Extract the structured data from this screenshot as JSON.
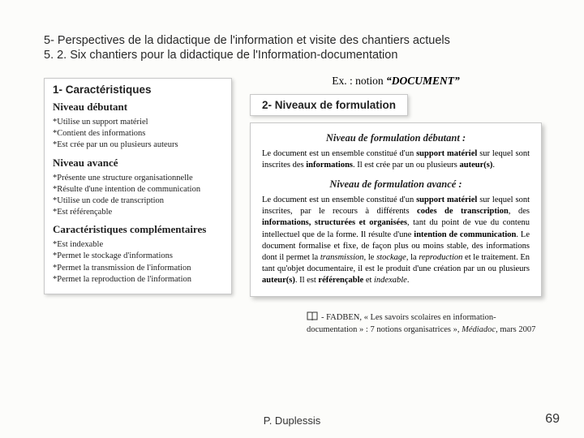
{
  "heading": {
    "line1": "5- Perspectives de la didactique de l'information et visite des chantiers actuels",
    "line2": "5. 2. Six chantiers pour la didactique de l'Information-documentation"
  },
  "example": {
    "prefix": "Ex. : notion ",
    "term": "“DOCUMENT”"
  },
  "left": {
    "section_label": "1- Caractéristiques",
    "debutant_label": "Niveau débutant",
    "debutant_items": [
      "Utilise un support matériel",
      "Contient des informations",
      "Est crée par un ou plusieurs auteurs"
    ],
    "avance_label": "Niveau avancé",
    "avance_items": [
      "Présente une structure organisationnelle",
      "Résulte d'une intention de communication",
      "Utilise un code de transcription",
      "Est référençable"
    ],
    "comp_label": "Caractéristiques complémentaires",
    "comp_items": [
      "Est indexable",
      "Permet le stockage d'informations",
      "Permet la transmission de l'information",
      "Permet la reproduction de l'information"
    ]
  },
  "right": {
    "section_label": "2- Niveaux de formulation",
    "deb_title": "Niveau de formulation débutant :",
    "deb_html": "Le document est un ensemble constitué d'un <strong>support matériel</strong> sur lequel sont inscrites des <strong>informations</strong>. Il est crée par un ou plusieurs <strong>auteur(s)</strong>.",
    "adv_title": "Niveau de formulation avancé :",
    "adv_html": "Le document est un ensemble constitué d'un <strong>support matériel</strong> sur lequel sont inscrites, par le recours à différents <strong>codes de transcription</strong>, des <strong>informations, structurées et organisées</strong>, tant du point de vue du contenu intellectuel que de la forme. Il résulte d'une <strong>intention de communication</strong>. Le document formalise et fixe, de façon plus ou moins stable, des informations dont il permet la <em>transmission</em>, le <em>stockage</em>, la <em>reproduction</em> et le traitement. En tant qu'objet documentaire, il est le produit d'une création par un ou plusieurs <strong>auteur(s)</strong>. Il est <strong>référençable</strong> et <em>indexable</em>."
  },
  "reference": {
    "text": "- FADBEN, « Les savoirs scolaires en information-documentation » : 7 notions organisatrices », ",
    "journal": "Médiadoc",
    "date": ", mars 2007"
  },
  "footer": {
    "author": "P. Duplessis",
    "page": "69"
  },
  "colors": {
    "bg": "#fcfcfa",
    "text": "#222222",
    "shadow": "rgba(0,0,0,0.2)",
    "border": "#c8c8c8"
  }
}
